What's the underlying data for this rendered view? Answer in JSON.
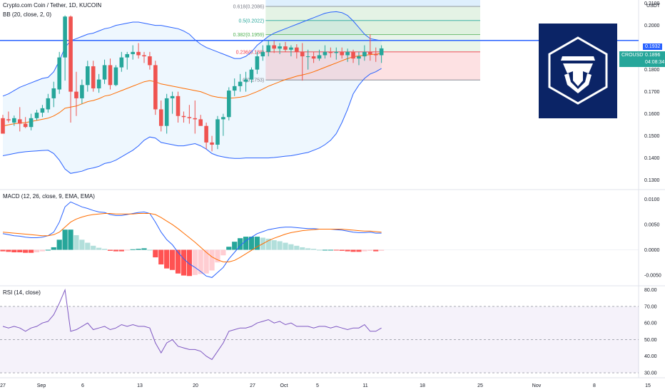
{
  "header": {
    "symbol_line": "Crypto.com Coin / Tether, 1D, KUCOIN",
    "bb_line": "BB (20, close, 2, 0)",
    "macd_line": "MACD (12, 26, close, 9, EMA, EMA)",
    "rsi_line": "RSI (14, close)",
    "currency": "USDT"
  },
  "price_tags": {
    "hline_value": "0.1932",
    "last_symbol": "CROUSDT",
    "last_value": "0.1896",
    "countdown": "04:08:34"
  },
  "colors": {
    "up": "#26a69a",
    "down": "#ef5350",
    "bb_band": "#2962ff",
    "bb_basis": "#ff6d00",
    "macd_line": "#2962ff",
    "signal_line": "#ff6d00",
    "rsi_line": "#7e57c2",
    "hline": "#2962ff",
    "logo_bg": "#0b2466"
  },
  "chart_data": [
    {
      "type": "candlestick",
      "title": "Crypto.com Coin / Tether, 1D, KUCOIN",
      "x_axis_labels": [
        "27",
        "Sep",
        "6",
        "13",
        "20",
        "27",
        "Oct",
        "5",
        "11",
        "18",
        "25",
        "Nov",
        "8",
        "15"
      ],
      "y_axis_labels": [
        "0.2100",
        "0.2000",
        "0.1900",
        "0.1800",
        "0.1700",
        "0.1600",
        "0.1500",
        "0.1400",
        "0.1300"
      ],
      "ylim": [
        0.126,
        0.2115
      ],
      "start_date": "2020-08-27",
      "candles": [
        {
          "o": 0.158,
          "h": 0.1595,
          "l": 0.1515,
          "c": 0.151
        },
        {
          "o": 0.1575,
          "h": 0.161,
          "l": 0.156,
          "c": 0.157
        },
        {
          "o": 0.156,
          "h": 0.1592,
          "l": 0.1545,
          "c": 0.158
        },
        {
          "o": 0.1575,
          "h": 0.163,
          "l": 0.152,
          "c": 0.1555
        },
        {
          "o": 0.1555,
          "h": 0.1585,
          "l": 0.1535,
          "c": 0.154
        },
        {
          "o": 0.154,
          "h": 0.16,
          "l": 0.1525,
          "c": 0.158
        },
        {
          "o": 0.158,
          "h": 0.1618,
          "l": 0.157,
          "c": 0.1605
        },
        {
          "o": 0.1605,
          "h": 0.164,
          "l": 0.1585,
          "c": 0.1625
        },
        {
          "o": 0.162,
          "h": 0.169,
          "l": 0.1605,
          "c": 0.167
        },
        {
          "o": 0.167,
          "h": 0.1745,
          "l": 0.163,
          "c": 0.1715
        },
        {
          "o": 0.171,
          "h": 0.188,
          "l": 0.169,
          "c": 0.1855
        },
        {
          "o": 0.1855,
          "h": 0.2045,
          "l": 0.175,
          "c": 0.204
        },
        {
          "o": 0.204,
          "h": 0.2045,
          "l": 0.156,
          "c": 0.17
        },
        {
          "o": 0.17,
          "h": 0.179,
          "l": 0.159,
          "c": 0.167
        },
        {
          "o": 0.167,
          "h": 0.1755,
          "l": 0.1645,
          "c": 0.173
        },
        {
          "o": 0.173,
          "h": 0.184,
          "l": 0.17,
          "c": 0.1815
        },
        {
          "o": 0.1815,
          "h": 0.184,
          "l": 0.17,
          "c": 0.1715
        },
        {
          "o": 0.1715,
          "h": 0.178,
          "l": 0.1695,
          "c": 0.1755
        },
        {
          "o": 0.1755,
          "h": 0.1845,
          "l": 0.1735,
          "c": 0.182
        },
        {
          "o": 0.182,
          "h": 0.185,
          "l": 0.171,
          "c": 0.173
        },
        {
          "o": 0.173,
          "h": 0.182,
          "l": 0.1725,
          "c": 0.181
        },
        {
          "o": 0.181,
          "h": 0.188,
          "l": 0.179,
          "c": 0.1855
        },
        {
          "o": 0.1855,
          "h": 0.188,
          "l": 0.18,
          "c": 0.187
        },
        {
          "o": 0.187,
          "h": 0.191,
          "l": 0.1845,
          "c": 0.188
        },
        {
          "o": 0.188,
          "h": 0.192,
          "l": 0.185,
          "c": 0.1865
        },
        {
          "o": 0.1865,
          "h": 0.188,
          "l": 0.183,
          "c": 0.186
        },
        {
          "o": 0.186,
          "h": 0.188,
          "l": 0.18,
          "c": 0.182
        },
        {
          "o": 0.182,
          "h": 0.184,
          "l": 0.1595,
          "c": 0.162
        },
        {
          "o": 0.162,
          "h": 0.166,
          "l": 0.152,
          "c": 0.1545
        },
        {
          "o": 0.1545,
          "h": 0.169,
          "l": 0.151,
          "c": 0.167
        },
        {
          "o": 0.167,
          "h": 0.17,
          "l": 0.16,
          "c": 0.168
        },
        {
          "o": 0.168,
          "h": 0.17,
          "l": 0.156,
          "c": 0.159
        },
        {
          "o": 0.159,
          "h": 0.161,
          "l": 0.156,
          "c": 0.1585
        },
        {
          "o": 0.1585,
          "h": 0.164,
          "l": 0.1555,
          "c": 0.158
        },
        {
          "o": 0.158,
          "h": 0.166,
          "l": 0.151,
          "c": 0.1575
        },
        {
          "o": 0.1575,
          "h": 0.1595,
          "l": 0.155,
          "c": 0.1545
        },
        {
          "o": 0.1545,
          "h": 0.156,
          "l": 0.144,
          "c": 0.147
        },
        {
          "o": 0.147,
          "h": 0.15,
          "l": 0.143,
          "c": 0.146
        },
        {
          "o": 0.146,
          "h": 0.159,
          "l": 0.144,
          "c": 0.1575
        },
        {
          "o": 0.1575,
          "h": 0.16,
          "l": 0.15,
          "c": 0.1585
        },
        {
          "o": 0.1585,
          "h": 0.172,
          "l": 0.157,
          "c": 0.1705
        },
        {
          "o": 0.1705,
          "h": 0.176,
          "l": 0.168,
          "c": 0.1725
        },
        {
          "o": 0.1725,
          "h": 0.178,
          "l": 0.17,
          "c": 0.1745
        },
        {
          "o": 0.1745,
          "h": 0.179,
          "l": 0.17,
          "c": 0.1755
        },
        {
          "o": 0.1755,
          "h": 0.181,
          "l": 0.174,
          "c": 0.18
        },
        {
          "o": 0.18,
          "h": 0.188,
          "l": 0.178,
          "c": 0.186
        },
        {
          "o": 0.186,
          "h": 0.191,
          "l": 0.184,
          "c": 0.188
        },
        {
          "o": 0.188,
          "h": 0.193,
          "l": 0.186,
          "c": 0.191
        },
        {
          "o": 0.191,
          "h": 0.193,
          "l": 0.1875,
          "c": 0.1895
        },
        {
          "o": 0.1895,
          "h": 0.192,
          "l": 0.187,
          "c": 0.1905
        },
        {
          "o": 0.1905,
          "h": 0.1925,
          "l": 0.188,
          "c": 0.189
        },
        {
          "o": 0.189,
          "h": 0.191,
          "l": 0.186,
          "c": 0.19
        },
        {
          "o": 0.19,
          "h": 0.1915,
          "l": 0.185,
          "c": 0.188
        },
        {
          "o": 0.188,
          "h": 0.192,
          "l": 0.175,
          "c": 0.186
        },
        {
          "o": 0.186,
          "h": 0.189,
          "l": 0.18,
          "c": 0.186
        },
        {
          "o": 0.186,
          "h": 0.188,
          "l": 0.183,
          "c": 0.185
        },
        {
          "o": 0.185,
          "h": 0.189,
          "l": 0.184,
          "c": 0.1865
        },
        {
          "o": 0.1865,
          "h": 0.191,
          "l": 0.185,
          "c": 0.188
        },
        {
          "o": 0.188,
          "h": 0.19,
          "l": 0.1855,
          "c": 0.1875
        },
        {
          "o": 0.1875,
          "h": 0.19,
          "l": 0.1845,
          "c": 0.188
        },
        {
          "o": 0.188,
          "h": 0.19,
          "l": 0.185,
          "c": 0.1865
        },
        {
          "o": 0.1865,
          "h": 0.1895,
          "l": 0.1835,
          "c": 0.188
        },
        {
          "o": 0.188,
          "h": 0.189,
          "l": 0.183,
          "c": 0.185
        },
        {
          "o": 0.185,
          "h": 0.188,
          "l": 0.182,
          "c": 0.186
        },
        {
          "o": 0.186,
          "h": 0.191,
          "l": 0.184,
          "c": 0.188
        },
        {
          "o": 0.188,
          "h": 0.196,
          "l": 0.184,
          "c": 0.187
        },
        {
          "o": 0.187,
          "h": 0.19,
          "l": 0.1835,
          "c": 0.1865
        },
        {
          "o": 0.1865,
          "h": 0.191,
          "l": 0.183,
          "c": 0.1896
        }
      ],
      "bollinger": {
        "upper": [
          0.168,
          0.169,
          0.1705,
          0.172,
          0.173,
          0.174,
          0.175,
          0.176,
          0.1765,
          0.179,
          0.184,
          0.19,
          0.193,
          0.194,
          0.195,
          0.196,
          0.1965,
          0.1975,
          0.1985,
          0.199,
          0.2,
          0.2005,
          0.201,
          0.2015,
          0.2015,
          0.201,
          0.2005,
          0.2,
          0.2,
          0.1995,
          0.199,
          0.1985,
          0.1975,
          0.196,
          0.1935,
          0.1915,
          0.19,
          0.189,
          0.188,
          0.187,
          0.186,
          0.185,
          0.185,
          0.186,
          0.188,
          0.191,
          0.193,
          0.195,
          0.1965,
          0.1975,
          0.1985,
          0.1995,
          0.2005,
          0.2015,
          0.2025,
          0.2035,
          0.2045,
          0.2055,
          0.206,
          0.2062,
          0.2058,
          0.2045,
          0.202,
          0.199,
          0.196,
          0.194,
          0.1935,
          0.193
        ],
        "basis": [
          0.1545,
          0.155,
          0.1555,
          0.1558,
          0.156,
          0.1565,
          0.157,
          0.1575,
          0.158,
          0.159,
          0.1605,
          0.1625,
          0.163,
          0.1635,
          0.1645,
          0.1655,
          0.166,
          0.1668,
          0.168,
          0.1685,
          0.1695,
          0.1705,
          0.1715,
          0.1725,
          0.1735,
          0.1745,
          0.175,
          0.1745,
          0.1735,
          0.173,
          0.1725,
          0.172,
          0.1715,
          0.171,
          0.1705,
          0.17,
          0.169,
          0.168,
          0.1675,
          0.1672,
          0.167,
          0.1672,
          0.1675,
          0.168,
          0.169,
          0.17,
          0.1712,
          0.1725,
          0.1735,
          0.1745,
          0.1755,
          0.1762,
          0.177,
          0.1776,
          0.1782,
          0.179,
          0.18,
          0.181,
          0.182,
          0.183,
          0.184,
          0.185,
          0.1858,
          0.1862,
          0.1865,
          0.1868,
          0.187,
          0.1872
        ],
        "lower": [
          0.141,
          0.1415,
          0.142,
          0.1425,
          0.1428,
          0.143,
          0.1432,
          0.1434,
          0.1435,
          0.142,
          0.139,
          0.135,
          0.133,
          0.1335,
          0.134,
          0.135,
          0.1355,
          0.1362,
          0.1375,
          0.138,
          0.139,
          0.1405,
          0.142,
          0.1435,
          0.1455,
          0.148,
          0.1495,
          0.149,
          0.147,
          0.1465,
          0.146,
          0.1455,
          0.1455,
          0.146,
          0.1465,
          0.1455,
          0.144,
          0.142,
          0.141,
          0.1405,
          0.14,
          0.1398,
          0.1398,
          0.14,
          0.14,
          0.14,
          0.14,
          0.14,
          0.1402,
          0.1405,
          0.1408,
          0.141,
          0.1415,
          0.142,
          0.1425,
          0.1435,
          0.1445,
          0.146,
          0.148,
          0.151,
          0.156,
          0.162,
          0.169,
          0.173,
          0.176,
          0.178,
          0.179,
          0.1805
        ]
      },
      "fibonacci": [
        {
          "label": "0.618(0.2086)",
          "value": 0.2086
        },
        {
          "label": "0.5(0.2022)",
          "value": 0.2022
        },
        {
          "label": "0.382(0.1959)",
          "value": 0.1959
        },
        {
          "label": "0.236(0.188)",
          "value": 0.188
        },
        {
          "label": "0(0.1753)",
          "value": 0.1753
        }
      ],
      "horizontal_line": 0.1932,
      "last_price": 0.1896
    },
    {
      "type": "macd",
      "title": "MACD (12, 26, close, 9, EMA, EMA)",
      "y_axis_labels": [
        "0.0100",
        "0.0050",
        "0.0000",
        "-0.0050"
      ],
      "ylim": [
        -0.007,
        0.0118
      ],
      "macd": [
        0.0032,
        0.003,
        0.0028,
        0.0027,
        0.0025,
        0.0024,
        0.0024,
        0.0025,
        0.0028,
        0.0035,
        0.0055,
        0.0085,
        0.0095,
        0.009,
        0.0085,
        0.0082,
        0.0078,
        0.0075,
        0.0074,
        0.007,
        0.0068,
        0.0068,
        0.007,
        0.0072,
        0.0074,
        0.0075,
        0.0072,
        0.0055,
        0.0035,
        0.002,
        0.001,
        -0.0005,
        -0.0018,
        -0.0028,
        -0.0035,
        -0.0043,
        -0.0052,
        -0.0055,
        -0.0045,
        -0.0035,
        -0.0018,
        -0.0005,
        0.0008,
        0.0018,
        0.0025,
        0.0032,
        0.0036,
        0.004,
        0.0042,
        0.0044,
        0.0045,
        0.0045,
        0.0044,
        0.0043,
        0.0042,
        0.0042,
        0.0041,
        0.0041,
        0.0041,
        0.004,
        0.0039,
        0.0037,
        0.0035,
        0.0034,
        0.0034,
        0.0035,
        0.0033,
        0.0033
      ],
      "signal": [
        0.0035,
        0.0034,
        0.0033,
        0.0032,
        0.0031,
        0.003,
        0.0029,
        0.0028,
        0.0028,
        0.003,
        0.0035,
        0.0045,
        0.0055,
        0.0061,
        0.0065,
        0.0068,
        0.007,
        0.0071,
        0.0072,
        0.0072,
        0.0071,
        0.0071,
        0.0071,
        0.0071,
        0.0072,
        0.0072,
        0.0072,
        0.007,
        0.0064,
        0.0057,
        0.005,
        0.0042,
        0.0033,
        0.0024,
        0.0015,
        0.0005,
        -0.0005,
        -0.0014,
        -0.002,
        -0.0024,
        -0.0024,
        -0.0021,
        -0.0015,
        -0.0008,
        -0.0001,
        0.0006,
        0.0012,
        0.0018,
        0.0023,
        0.0027,
        0.0031,
        0.0034,
        0.0036,
        0.0038,
        0.0039,
        0.004,
        0.0041,
        0.0041,
        0.0041,
        0.0041,
        0.0041,
        0.004,
        0.0039,
        0.0038,
        0.0037,
        0.0037,
        0.0036,
        0.0035
      ],
      "histogram": [
        -0.0003,
        -0.0004,
        -0.0005,
        -0.0005,
        -0.0006,
        -0.0006,
        -0.0005,
        -0.0003,
        0.0,
        0.0005,
        0.002,
        0.004,
        0.004,
        0.0029,
        0.002,
        0.0014,
        0.0008,
        0.0004,
        0.0002,
        -0.0002,
        -0.0003,
        -0.0003,
        -0.0001,
        0.0001,
        0.0002,
        0.0003,
        0.0,
        -0.0015,
        -0.0029,
        -0.0037,
        -0.004,
        -0.0047,
        -0.0051,
        -0.0052,
        -0.005,
        -0.0048,
        -0.0047,
        -0.0041,
        -0.0025,
        -0.0011,
        0.0006,
        0.0016,
        0.0023,
        0.0026,
        0.0026,
        0.0026,
        0.0024,
        0.0022,
        0.0019,
        0.0017,
        0.0014,
        0.0011,
        0.0008,
        0.0005,
        0.0003,
        0.0002,
        0.0,
        0.0,
        0.0,
        -0.0001,
        -0.0002,
        -0.0003,
        -0.0004,
        -0.0004,
        -0.0003,
        -0.0002,
        -0.0003,
        -0.0002
      ]
    },
    {
      "type": "rsi",
      "title": "RSI (14, close)",
      "y_axis_labels": [
        "80.00",
        "70.00",
        "60.00",
        "50.00",
        "40.00",
        "30.00"
      ],
      "ylim": [
        27,
        82
      ],
      "upper_band": 70,
      "lower_band": 30,
      "middle_band": 50,
      "values": [
        58,
        57,
        58,
        57,
        55,
        57,
        58,
        60,
        61,
        65,
        72,
        80,
        55,
        56,
        58,
        60,
        56,
        57,
        58,
        56,
        57,
        59,
        58,
        59,
        58,
        58,
        57,
        48,
        42,
        48,
        50,
        46,
        45,
        44,
        44,
        43,
        40,
        38,
        43,
        48,
        55,
        56,
        57,
        57,
        58,
        60,
        61,
        62,
        60,
        61,
        59,
        60,
        58,
        58,
        58,
        57,
        58,
        58,
        57,
        58,
        57,
        56,
        57,
        57,
        59,
        55,
        55,
        57
      ]
    }
  ]
}
